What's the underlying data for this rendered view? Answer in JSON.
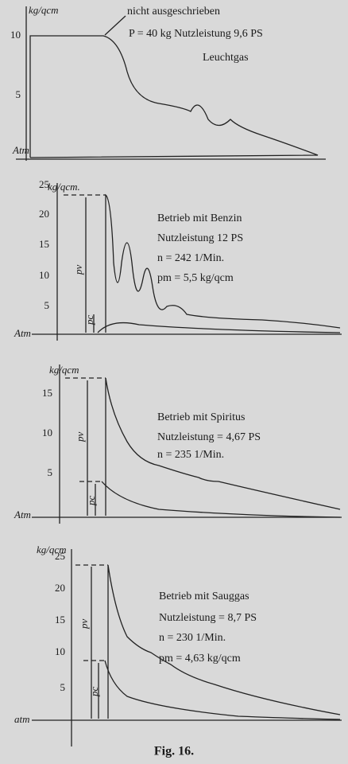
{
  "panels": [
    {
      "unit": "kg/qcm",
      "note": "nicht ausgeschrieben",
      "lines": [
        "P = 40 kg Nutzleistung 9,6 PS",
        "Leuchtgas"
      ],
      "ticks": [
        "10",
        "5"
      ],
      "baseline": "Atm"
    },
    {
      "unit": "kg/qcm.",
      "lines": [
        "Betrieb mit Benzin",
        "Nutzleistung 12 PS",
        "n = 242 1/Min.",
        "pm = 5,5 kg/qcm"
      ],
      "ticks": [
        "25",
        "20",
        "15",
        "10",
        "5"
      ],
      "markers": [
        "pv",
        "pc"
      ],
      "baseline": "Atm"
    },
    {
      "unit": "kg/qcm",
      "lines": [
        "Betrieb mit Spiritus",
        "Nutzleistung = 4,67 PS",
        "n = 235 1/Min."
      ],
      "ticks": [
        "15",
        "10",
        "5"
      ],
      "markers": [
        "pv",
        "pc"
      ],
      "baseline": "Atm"
    },
    {
      "unit": "kg/qcm",
      "lines": [
        "Betrieb mit Sauggas",
        "Nutzleistung = 8,7 PS",
        "n = 230 1/Min.",
        "pm = 4,63 kg/qcm"
      ],
      "ticks": [
        "25",
        "20",
        "15",
        "10",
        "5"
      ],
      "markers": [
        "pv",
        "pc"
      ],
      "baseline": "atm"
    }
  ],
  "caption": "Fig. 16."
}
